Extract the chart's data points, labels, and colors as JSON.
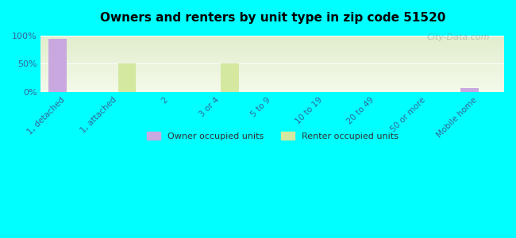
{
  "title": "Owners and renters by unit type in zip code 51520",
  "categories": [
    "1, detached",
    "1, attached",
    "2",
    "3 or 4",
    "5 to 9",
    "10 to 19",
    "20 to 49",
    "50 or more",
    "Mobile home"
  ],
  "owner_values": [
    95,
    0,
    0,
    0,
    0,
    0,
    0,
    0,
    7
  ],
  "renter_values": [
    0,
    50,
    0,
    50,
    0,
    0,
    0,
    0,
    0
  ],
  "owner_color": "#c9a8e0",
  "renter_color": "#d4e8a0",
  "background_color": "#00ffff",
  "plot_bg_top": "#e8f5d0",
  "plot_bg_bottom": "#f5fbee",
  "ylim": [
    0,
    100
  ],
  "yticks": [
    0,
    50,
    100
  ],
  "ytick_labels": [
    "0%",
    "50%",
    "100%"
  ],
  "bar_width": 0.35,
  "legend_owner": "Owner occupied units",
  "legend_renter": "Renter occupied units",
  "watermark": "City-Data.com"
}
